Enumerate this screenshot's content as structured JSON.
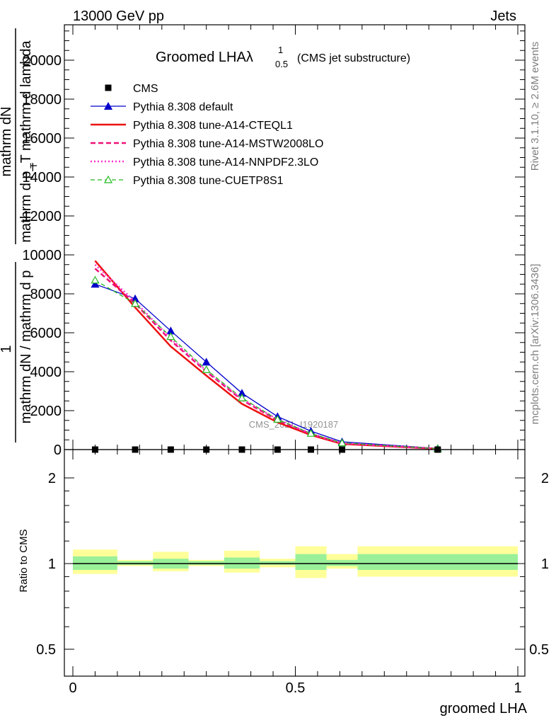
{
  "header": {
    "left": "13000 GeV pp",
    "right": "Jets"
  },
  "side_labels": {
    "rivet": "Rivet 3.1.10, ≥ 2.6M events",
    "mcplots": "mcplots.cern.ch [arXiv:1306.3436]"
  },
  "watermark": "CMS_2021_I1920187",
  "colors": {
    "cms": "#000000",
    "default": "#0000cc",
    "cteql1": "#ee1111",
    "mstw": "#ee1177",
    "nnpdf": "#ff33cc",
    "cuetp8s1": "#22bb22",
    "band_inner": "#99f099",
    "band_outer": "#ffff99"
  },
  "chart_data": [
    {
      "type": "line",
      "title": "Groomed LHAλ",
      "title_sup": "1",
      "title_sub": "0.5",
      "subtitle": "(CMS jet substructure)",
      "ylabel_line1": "mathrm dN",
      "ylabel_line2": "mathrm d p_T mathrm d lambda",
      "ylabel_prefix": "1",
      "ylabel_den_line1": "mathrm dN / mathrm d p",
      "ylabel_den_sub": "T",
      "xlabel": "",
      "xlim": [
        0,
        1
      ],
      "ylim": [
        0,
        22000
      ],
      "yticks": [
        "0",
        "2000",
        "4000",
        "6000",
        "8000",
        "10000",
        "12000",
        "14000",
        "16000",
        "18000",
        "20000"
      ],
      "series": [
        {
          "name": "CMS",
          "key": "cms",
          "style": "square",
          "x": [
            0.05,
            0.14,
            0.22,
            0.3,
            0.38,
            0.46,
            0.535,
            0.605,
            0.82
          ],
          "y": [
            0,
            0,
            0,
            0,
            0,
            0,
            0,
            0,
            0
          ]
        },
        {
          "name": "Pythia 8.308 default",
          "key": "default",
          "style": "triangle",
          "x": [
            0.05,
            0.14,
            0.22,
            0.3,
            0.38,
            0.46,
            0.535,
            0.605,
            0.82
          ],
          "y": [
            8500,
            7750,
            6100,
            4500,
            2900,
            1700,
            950,
            400,
            60
          ]
        },
        {
          "name": "Pythia 8.308 tune-A14-CTEQL1",
          "key": "cteql1",
          "style": "solid",
          "x": [
            0.05,
            0.14,
            0.22,
            0.3,
            0.38,
            0.46,
            0.535,
            0.605,
            0.82
          ],
          "y": [
            9700,
            7300,
            5300,
            3800,
            2350,
            1400,
            750,
            290,
            35
          ]
        },
        {
          "name": "Pythia 8.308 tune-A14-MSTW2008LO",
          "key": "mstw",
          "style": "dashed",
          "x": [
            0.05,
            0.14,
            0.22,
            0.3,
            0.38,
            0.46,
            0.535,
            0.605,
            0.82
          ],
          "y": [
            9300,
            7500,
            5600,
            4000,
            2550,
            1500,
            800,
            320,
            40
          ]
        },
        {
          "name": "Pythia 8.308 tune-A14-NNPDF2.3LO",
          "key": "nnpdf",
          "style": "dotted",
          "x": [
            0.05,
            0.14,
            0.22,
            0.3,
            0.38,
            0.46,
            0.535,
            0.605,
            0.82
          ],
          "y": [
            9500,
            7600,
            5700,
            4050,
            2600,
            1550,
            820,
            330,
            42
          ]
        },
        {
          "name": "Pythia 8.308 tune-CUETP8S1",
          "key": "cuetp8s1",
          "style": "dashed-open-triangle",
          "x": [
            0.05,
            0.14,
            0.22,
            0.3,
            0.38,
            0.46,
            0.535,
            0.605,
            0.82
          ],
          "y": [
            8700,
            7500,
            5800,
            4100,
            2650,
            1550,
            830,
            340,
            45
          ]
        }
      ]
    },
    {
      "type": "line",
      "title": "",
      "xlabel": "groomed LHA",
      "ylabel": "Ratio to CMS",
      "xlim": [
        0,
        1
      ],
      "ylim": [
        0.4,
        2.3
      ],
      "yscale": "log",
      "yticks": [
        0.5,
        1,
        2
      ],
      "ytick_labels": [
        "0.5",
        "1",
        "2"
      ],
      "xtick_labels": [
        "0",
        "0.5",
        "1"
      ],
      "ratio_line": 1,
      "bins": [
        {
          "x0": 0.0,
          "x1": 0.1,
          "inner": [
            0.95,
            1.06
          ],
          "outer": [
            0.92,
            1.12
          ]
        },
        {
          "x0": 0.1,
          "x1": 0.18,
          "inner": [
            0.99,
            1.02
          ],
          "outer": [
            0.98,
            1.03
          ]
        },
        {
          "x0": 0.18,
          "x1": 0.26,
          "inner": [
            0.96,
            1.04
          ],
          "outer": [
            0.94,
            1.1
          ]
        },
        {
          "x0": 0.26,
          "x1": 0.34,
          "inner": [
            0.99,
            1.02
          ],
          "outer": [
            0.98,
            1.03
          ]
        },
        {
          "x0": 0.34,
          "x1": 0.42,
          "inner": [
            0.96,
            1.05
          ],
          "outer": [
            0.93,
            1.11
          ]
        },
        {
          "x0": 0.42,
          "x1": 0.5,
          "inner": [
            0.99,
            1.02
          ],
          "outer": [
            0.97,
            1.04
          ]
        },
        {
          "x0": 0.5,
          "x1": 0.57,
          "inner": [
            0.95,
            1.08
          ],
          "outer": [
            0.89,
            1.15
          ]
        },
        {
          "x0": 0.57,
          "x1": 0.64,
          "inner": [
            0.98,
            1.03
          ],
          "outer": [
            0.96,
            1.08
          ]
        },
        {
          "x0": 0.64,
          "x1": 1.0,
          "inner": [
            0.95,
            1.08
          ],
          "outer": [
            0.9,
            1.15
          ]
        }
      ]
    }
  ]
}
